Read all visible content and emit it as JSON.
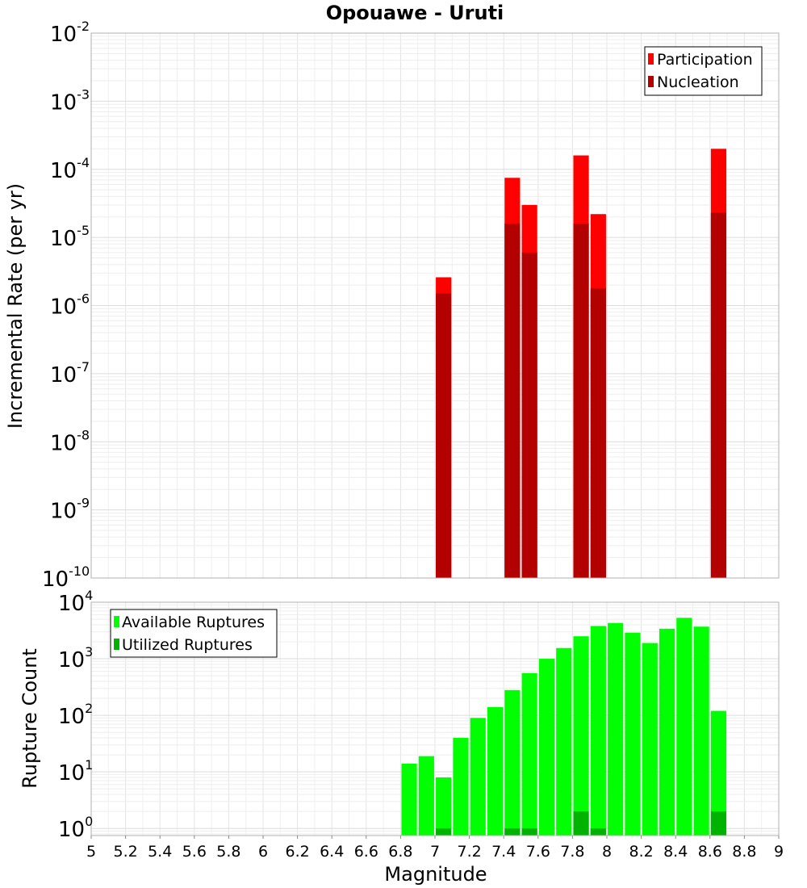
{
  "chart_data": [
    {
      "type": "bar",
      "title": "Opouawe - Uruti",
      "xlabel": "",
      "ylabel": "Incremental Rate (per yr)",
      "yscale": "log",
      "ylim": [
        1e-10,
        0.01
      ],
      "xlim": [
        5,
        9
      ],
      "ytick_exponents": [
        "-2",
        "-3",
        "-4",
        "-5",
        "-6",
        "-7",
        "-8",
        "-9",
        "-10"
      ],
      "grid": true,
      "legend_position": "top-right",
      "bar_width": 0.09,
      "series": [
        {
          "name": "Participation",
          "color": "#ff0000",
          "x": [
            7.05,
            7.45,
            7.55,
            7.85,
            7.95,
            8.65
          ],
          "values": [
            2.6e-06,
            7.5e-05,
            3e-05,
            0.00016,
            2.2e-05,
            0.0002
          ]
        },
        {
          "name": "Nucleation",
          "color": "#b30000",
          "x": [
            7.05,
            7.45,
            7.55,
            7.85,
            7.95,
            8.65
          ],
          "values": [
            1.5e-06,
            1.6e-05,
            6e-06,
            1.6e-05,
            1.8e-06,
            2.3e-05
          ]
        }
      ]
    },
    {
      "type": "bar",
      "xlabel": "Magnitude",
      "ylabel": "Rupture Count",
      "yscale": "log",
      "ylim": [
        0.75,
        10000
      ],
      "xlim": [
        5,
        9
      ],
      "ytick_exponents": [
        "4",
        "3",
        "2",
        "1",
        "0"
      ],
      "xticks": [
        "5",
        "5.2",
        "5.4",
        "5.6",
        "5.8",
        "6",
        "6.2",
        "6.4",
        "6.6",
        "6.8",
        "7",
        "7.2",
        "7.4",
        "7.6",
        "7.8",
        "8",
        "8.2",
        "8.4",
        "8.6",
        "8.8",
        "9"
      ],
      "grid": true,
      "legend_position": "top-left",
      "bar_width": 0.09,
      "series": [
        {
          "name": "Available Ruptures",
          "color": "#00ff00",
          "x": [
            6.85,
            6.95,
            7.05,
            7.15,
            7.25,
            7.35,
            7.45,
            7.55,
            7.65,
            7.75,
            7.85,
            7.95,
            8.05,
            8.15,
            8.25,
            8.35,
            8.45,
            8.55,
            8.65
          ],
          "values": [
            14,
            19,
            8,
            40,
            90,
            140,
            280,
            560,
            1000,
            1550,
            2500,
            3800,
            4300,
            2900,
            1900,
            3400,
            5300,
            3700,
            120
          ]
        },
        {
          "name": "Utilized Ruptures",
          "color": "#00b300",
          "x": [
            7.05,
            7.45,
            7.55,
            7.85,
            7.95,
            8.65
          ],
          "values": [
            1,
            1,
            1,
            2,
            1,
            2
          ]
        }
      ]
    }
  ]
}
